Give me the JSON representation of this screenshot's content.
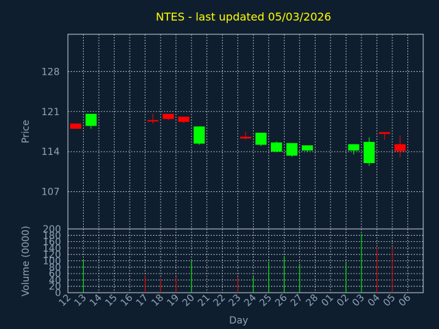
{
  "colors": {
    "background": "#0f1e2e",
    "up": "#00ff00",
    "down": "#ff0000",
    "title": "#ffff00",
    "text": "#8fa3b8",
    "grid": "#c8d0d8"
  },
  "chart_data": {
    "type": "candlestick",
    "title": "NTES - last updated 05/03/2026",
    "price_axis": {
      "label": "Price",
      "ylim": [
        100.5,
        134.5
      ],
      "ticks": [
        107,
        114,
        121,
        128
      ]
    },
    "volume_axis": {
      "label": "Volume (0000)",
      "ylim": [
        0,
        200
      ],
      "ticks": [
        0,
        20,
        40,
        60,
        80,
        100,
        120,
        140,
        160,
        180,
        200
      ]
    },
    "xlabel": "Day",
    "x_ticks": [
      "12",
      "13",
      "14",
      "15",
      "16",
      "17",
      "18",
      "19",
      "20",
      "21",
      "22",
      "23",
      "24",
      "25",
      "26",
      "27",
      "28",
      "01",
      "02",
      "03",
      "04",
      "05",
      "06"
    ],
    "grid": true,
    "candles": [
      {
        "day": "12",
        "open": 118.9,
        "close": 118.0,
        "high": 118.9,
        "low": 118.0,
        "volume": 0
      },
      {
        "day": "13",
        "open": 118.5,
        "close": 120.6,
        "high": 120.6,
        "low": 118.0,
        "volume": 105
      },
      {
        "day": "17",
        "open": 119.5,
        "close": 119.4,
        "high": 120.6,
        "low": 118.9,
        "volume": 55
      },
      {
        "day": "18",
        "open": 120.6,
        "close": 119.7,
        "high": 120.6,
        "low": 119.5,
        "volume": 45
      },
      {
        "day": "19",
        "open": 120.1,
        "close": 119.2,
        "high": 120.1,
        "low": 119.0,
        "volume": 50
      },
      {
        "day": "20",
        "open": 115.4,
        "close": 118.4,
        "high": 118.4,
        "low": 115.2,
        "volume": 100
      },
      {
        "day": "23",
        "open": 116.6,
        "close": 116.3,
        "high": 117.5,
        "low": 116.1,
        "volume": 50
      },
      {
        "day": "24",
        "open": 115.2,
        "close": 117.3,
        "high": 117.3,
        "low": 115.0,
        "volume": 50
      },
      {
        "day": "25",
        "open": 114.0,
        "close": 115.6,
        "high": 115.8,
        "low": 113.9,
        "volume": 95
      },
      {
        "day": "26",
        "open": 113.3,
        "close": 115.5,
        "high": 115.5,
        "low": 113.1,
        "volume": 115
      },
      {
        "day": "27",
        "open": 114.2,
        "close": 115.1,
        "high": 115.1,
        "low": 113.9,
        "volume": 90
      },
      {
        "day": "02",
        "open": 114.2,
        "close": 115.3,
        "high": 115.3,
        "low": 113.5,
        "volume": 95
      },
      {
        "day": "03",
        "open": 112.0,
        "close": 115.7,
        "high": 116.5,
        "low": 111.5,
        "volume": 185
      },
      {
        "day": "04",
        "open": 117.4,
        "close": 117.1,
        "high": 117.4,
        "low": 116.1,
        "volume": 140
      },
      {
        "day": "05",
        "open": 115.3,
        "close": 114.1,
        "high": 116.8,
        "low": 113.0,
        "volume": 140
      }
    ]
  }
}
